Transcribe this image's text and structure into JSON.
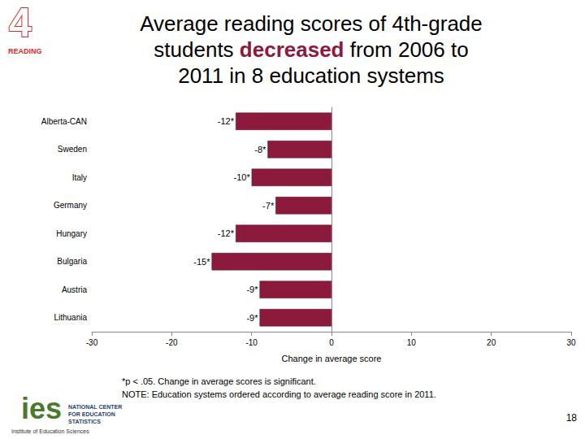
{
  "header": {
    "badge_number": "4",
    "badge_label": "READING"
  },
  "chart_data": {
    "type": "bar",
    "orientation": "horizontal",
    "title": "Average reading scores of 4th-grade\nstudents decreased from 2006 to\n2011 in 8 education systems",
    "title_highlight": "decreased",
    "categories": [
      "Alberta-CAN",
      "Sweden",
      "Italy",
      "Germany",
      "Hungary",
      "Bulgaria",
      "Austria",
      "Lithuania"
    ],
    "values": [
      -12,
      -8,
      -10,
      -7,
      -12,
      -15,
      -9,
      -9
    ],
    "value_labels": [
      "-12*",
      "-8*",
      "-10*",
      "-7*",
      "-12*",
      "-15*",
      "-9*",
      "-9*"
    ],
    "color": "#8b1a3c",
    "xlim": [
      -30,
      30
    ],
    "xticks": [
      -30,
      -20,
      -10,
      0,
      10,
      20,
      30
    ],
    "xlabel": "Change in average score",
    "grid": false,
    "data_labels": true,
    "annotations": [
      "*p < .05. Change in average scores is significant.",
      "NOTE: Education systems ordered according to average reading score in 2011."
    ]
  },
  "footer": {
    "logo_mark": "ies",
    "logo_name": "NATIONAL CENTER FOR EDUCATION STATISTICS",
    "logo_institute": "Institute of Education Sciences",
    "page_number": "18"
  }
}
